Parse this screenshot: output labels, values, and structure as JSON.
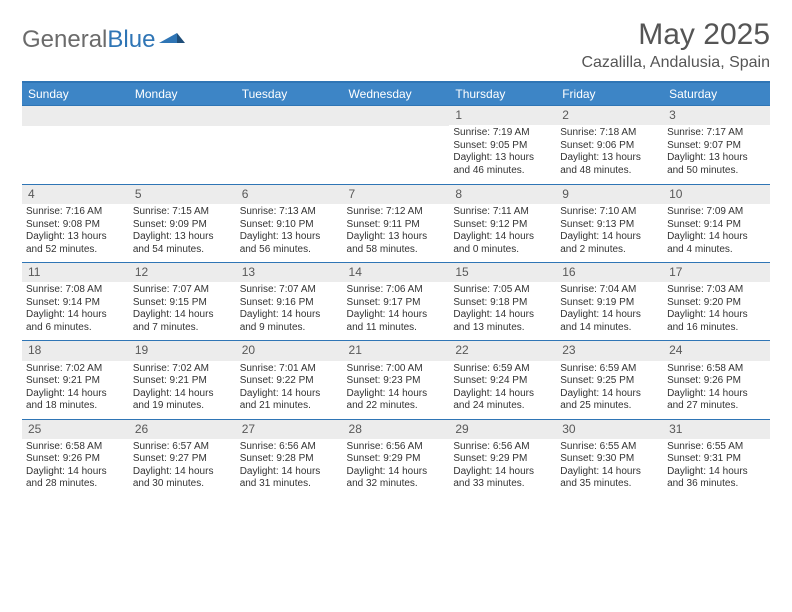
{
  "logo": {
    "part1": "General",
    "part2": "Blue"
  },
  "title": {
    "month": "May 2025",
    "location": "Cazalilla, Andalusia, Spain"
  },
  "weekdays": [
    "Sunday",
    "Monday",
    "Tuesday",
    "Wednesday",
    "Thursday",
    "Friday",
    "Saturday"
  ],
  "colors": {
    "header_bg": "#3d85c6",
    "rule": "#2f75b5",
    "daynum_bg": "#ececec"
  },
  "weeks": [
    [
      null,
      null,
      null,
      null,
      {
        "n": "1",
        "sr": "Sunrise: 7:19 AM",
        "ss": "Sunset: 9:05 PM",
        "dl": "Daylight: 13 hours and 46 minutes."
      },
      {
        "n": "2",
        "sr": "Sunrise: 7:18 AM",
        "ss": "Sunset: 9:06 PM",
        "dl": "Daylight: 13 hours and 48 minutes."
      },
      {
        "n": "3",
        "sr": "Sunrise: 7:17 AM",
        "ss": "Sunset: 9:07 PM",
        "dl": "Daylight: 13 hours and 50 minutes."
      }
    ],
    [
      {
        "n": "4",
        "sr": "Sunrise: 7:16 AM",
        "ss": "Sunset: 9:08 PM",
        "dl": "Daylight: 13 hours and 52 minutes."
      },
      {
        "n": "5",
        "sr": "Sunrise: 7:15 AM",
        "ss": "Sunset: 9:09 PM",
        "dl": "Daylight: 13 hours and 54 minutes."
      },
      {
        "n": "6",
        "sr": "Sunrise: 7:13 AM",
        "ss": "Sunset: 9:10 PM",
        "dl": "Daylight: 13 hours and 56 minutes."
      },
      {
        "n": "7",
        "sr": "Sunrise: 7:12 AM",
        "ss": "Sunset: 9:11 PM",
        "dl": "Daylight: 13 hours and 58 minutes."
      },
      {
        "n": "8",
        "sr": "Sunrise: 7:11 AM",
        "ss": "Sunset: 9:12 PM",
        "dl": "Daylight: 14 hours and 0 minutes."
      },
      {
        "n": "9",
        "sr": "Sunrise: 7:10 AM",
        "ss": "Sunset: 9:13 PM",
        "dl": "Daylight: 14 hours and 2 minutes."
      },
      {
        "n": "10",
        "sr": "Sunrise: 7:09 AM",
        "ss": "Sunset: 9:14 PM",
        "dl": "Daylight: 14 hours and 4 minutes."
      }
    ],
    [
      {
        "n": "11",
        "sr": "Sunrise: 7:08 AM",
        "ss": "Sunset: 9:14 PM",
        "dl": "Daylight: 14 hours and 6 minutes."
      },
      {
        "n": "12",
        "sr": "Sunrise: 7:07 AM",
        "ss": "Sunset: 9:15 PM",
        "dl": "Daylight: 14 hours and 7 minutes."
      },
      {
        "n": "13",
        "sr": "Sunrise: 7:07 AM",
        "ss": "Sunset: 9:16 PM",
        "dl": "Daylight: 14 hours and 9 minutes."
      },
      {
        "n": "14",
        "sr": "Sunrise: 7:06 AM",
        "ss": "Sunset: 9:17 PM",
        "dl": "Daylight: 14 hours and 11 minutes."
      },
      {
        "n": "15",
        "sr": "Sunrise: 7:05 AM",
        "ss": "Sunset: 9:18 PM",
        "dl": "Daylight: 14 hours and 13 minutes."
      },
      {
        "n": "16",
        "sr": "Sunrise: 7:04 AM",
        "ss": "Sunset: 9:19 PM",
        "dl": "Daylight: 14 hours and 14 minutes."
      },
      {
        "n": "17",
        "sr": "Sunrise: 7:03 AM",
        "ss": "Sunset: 9:20 PM",
        "dl": "Daylight: 14 hours and 16 minutes."
      }
    ],
    [
      {
        "n": "18",
        "sr": "Sunrise: 7:02 AM",
        "ss": "Sunset: 9:21 PM",
        "dl": "Daylight: 14 hours and 18 minutes."
      },
      {
        "n": "19",
        "sr": "Sunrise: 7:02 AM",
        "ss": "Sunset: 9:21 PM",
        "dl": "Daylight: 14 hours and 19 minutes."
      },
      {
        "n": "20",
        "sr": "Sunrise: 7:01 AM",
        "ss": "Sunset: 9:22 PM",
        "dl": "Daylight: 14 hours and 21 minutes."
      },
      {
        "n": "21",
        "sr": "Sunrise: 7:00 AM",
        "ss": "Sunset: 9:23 PM",
        "dl": "Daylight: 14 hours and 22 minutes."
      },
      {
        "n": "22",
        "sr": "Sunrise: 6:59 AM",
        "ss": "Sunset: 9:24 PM",
        "dl": "Daylight: 14 hours and 24 minutes."
      },
      {
        "n": "23",
        "sr": "Sunrise: 6:59 AM",
        "ss": "Sunset: 9:25 PM",
        "dl": "Daylight: 14 hours and 25 minutes."
      },
      {
        "n": "24",
        "sr": "Sunrise: 6:58 AM",
        "ss": "Sunset: 9:26 PM",
        "dl": "Daylight: 14 hours and 27 minutes."
      }
    ],
    [
      {
        "n": "25",
        "sr": "Sunrise: 6:58 AM",
        "ss": "Sunset: 9:26 PM",
        "dl": "Daylight: 14 hours and 28 minutes."
      },
      {
        "n": "26",
        "sr": "Sunrise: 6:57 AM",
        "ss": "Sunset: 9:27 PM",
        "dl": "Daylight: 14 hours and 30 minutes."
      },
      {
        "n": "27",
        "sr": "Sunrise: 6:56 AM",
        "ss": "Sunset: 9:28 PM",
        "dl": "Daylight: 14 hours and 31 minutes."
      },
      {
        "n": "28",
        "sr": "Sunrise: 6:56 AM",
        "ss": "Sunset: 9:29 PM",
        "dl": "Daylight: 14 hours and 32 minutes."
      },
      {
        "n": "29",
        "sr": "Sunrise: 6:56 AM",
        "ss": "Sunset: 9:29 PM",
        "dl": "Daylight: 14 hours and 33 minutes."
      },
      {
        "n": "30",
        "sr": "Sunrise: 6:55 AM",
        "ss": "Sunset: 9:30 PM",
        "dl": "Daylight: 14 hours and 35 minutes."
      },
      {
        "n": "31",
        "sr": "Sunrise: 6:55 AM",
        "ss": "Sunset: 9:31 PM",
        "dl": "Daylight: 14 hours and 36 minutes."
      }
    ]
  ]
}
